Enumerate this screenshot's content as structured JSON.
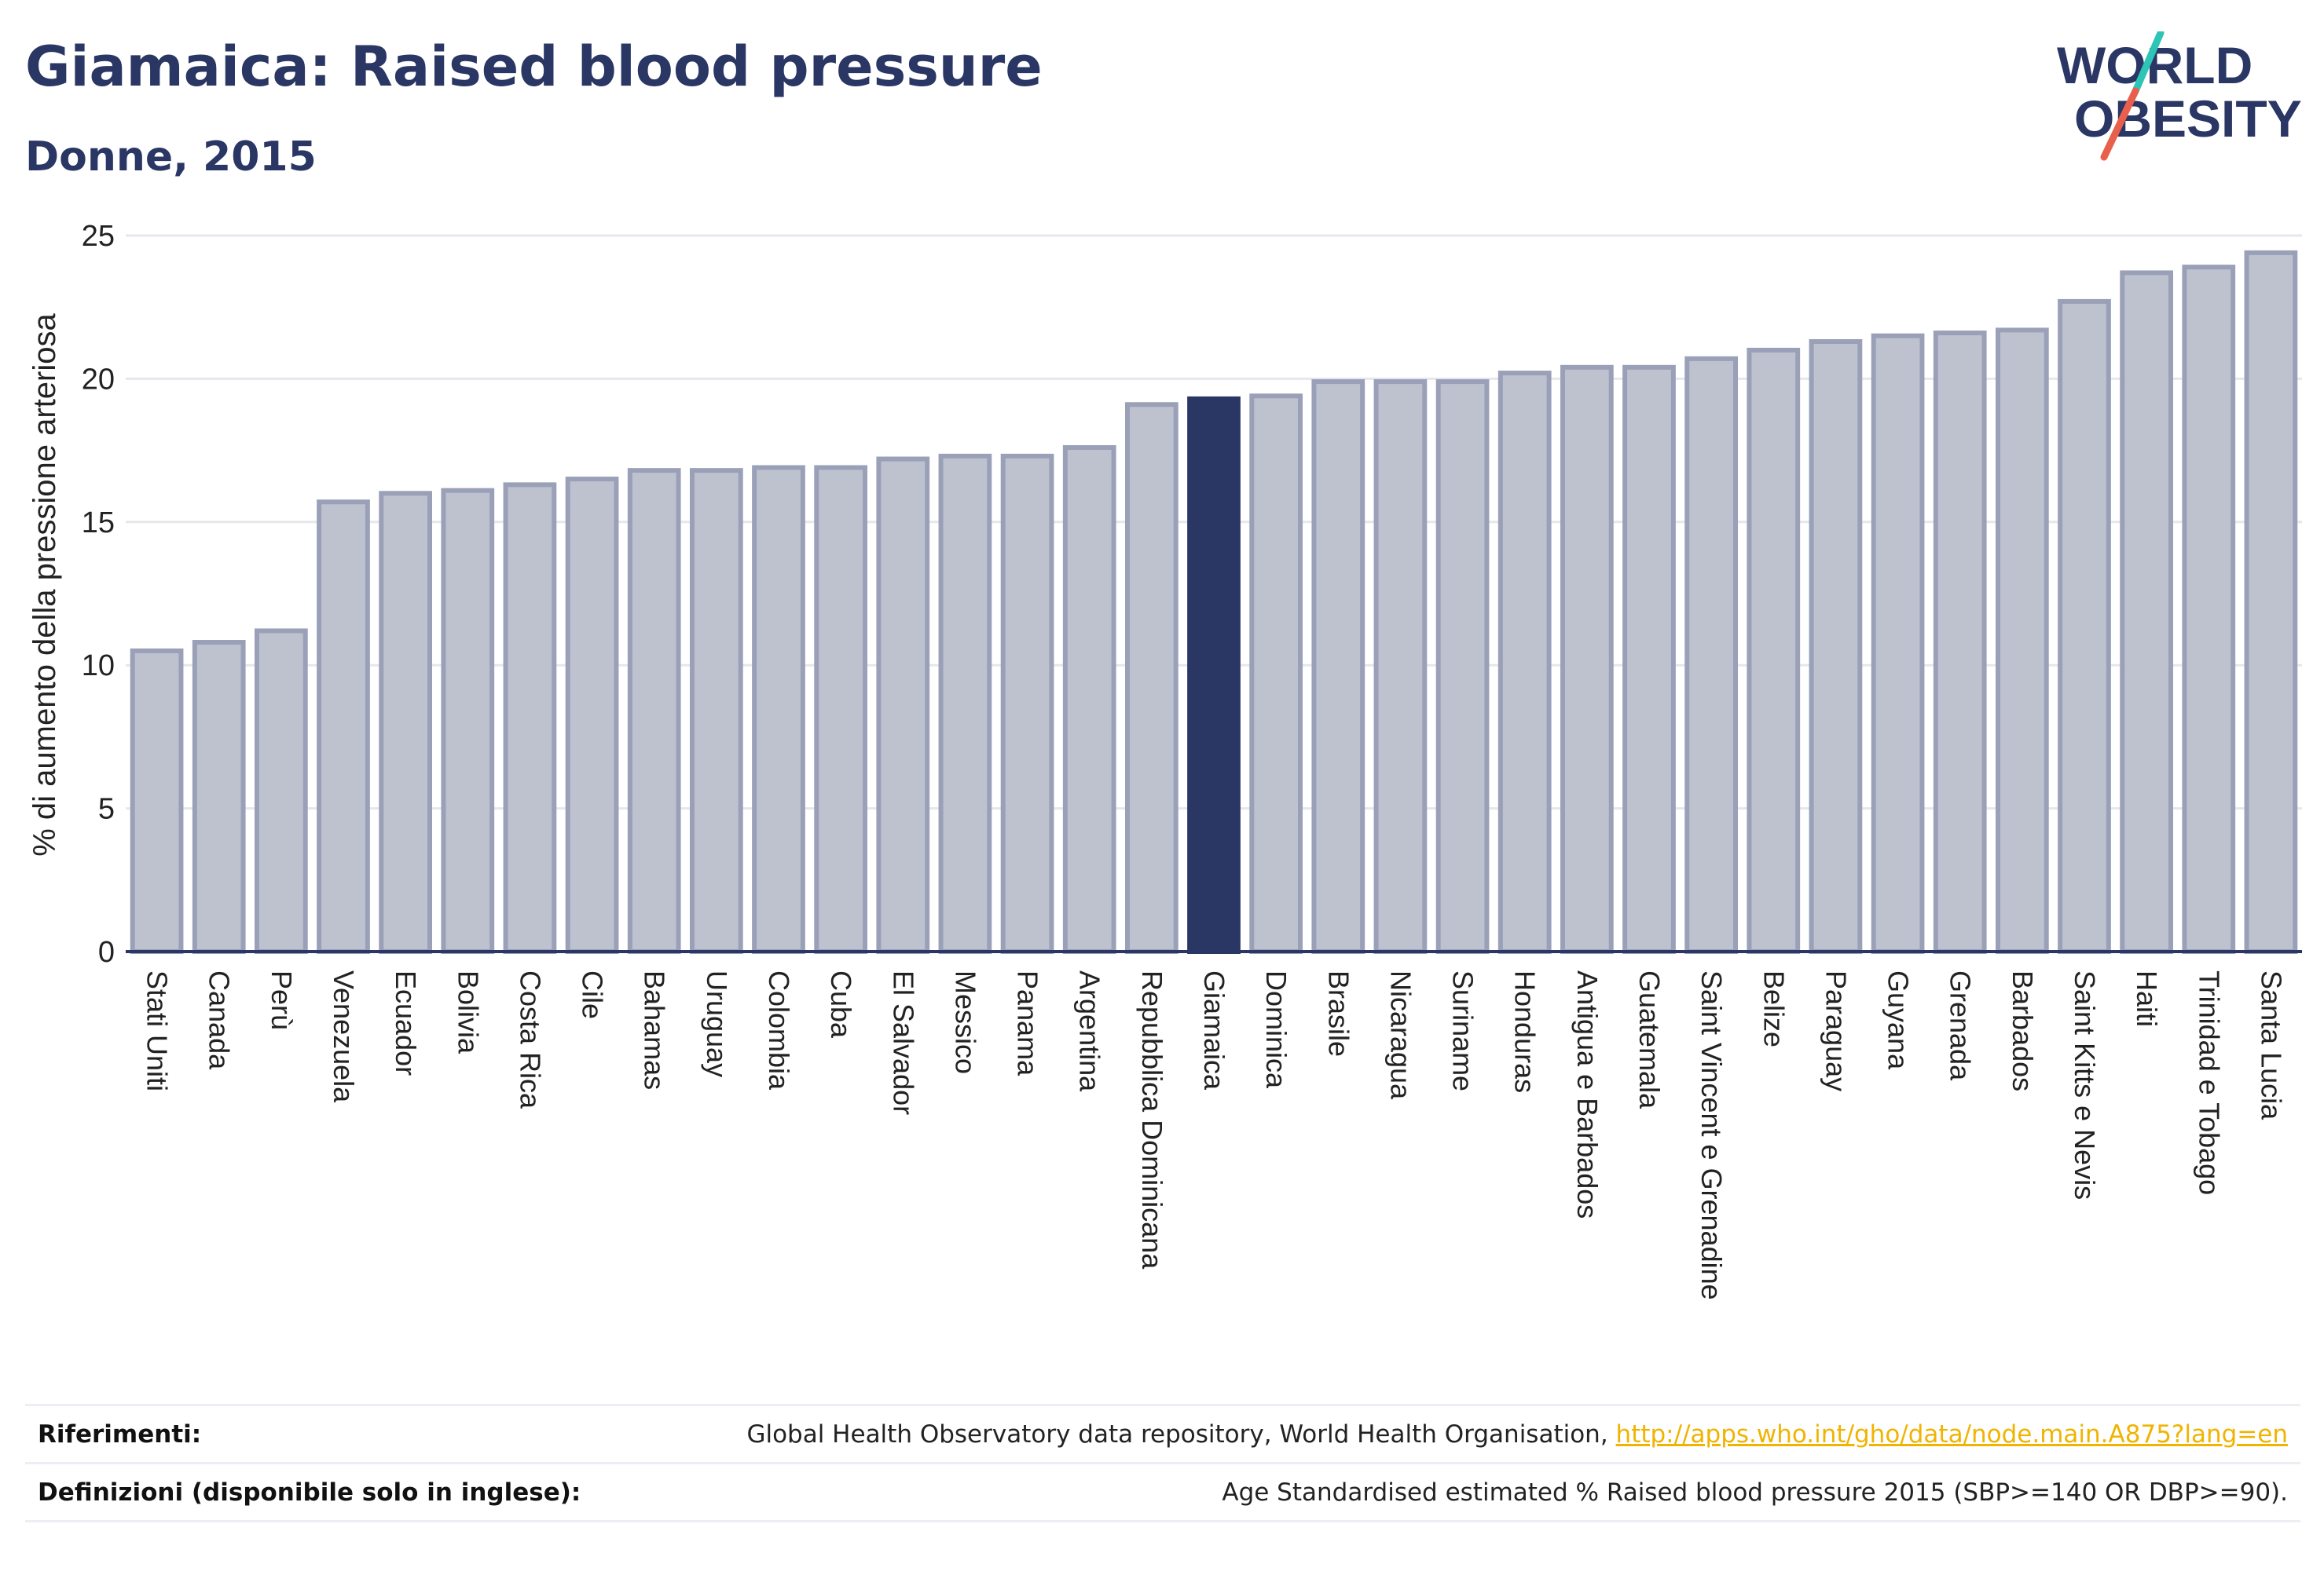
{
  "header": {
    "title": "Giamaica: Raised blood pressure",
    "subtitle": "Donne, 2015"
  },
  "logo": {
    "line1": "WORLD",
    "line2": "OBESITY",
    "colors": {
      "text": "#2a3663",
      "slash_top": "#2ec4b6",
      "slash_bottom": "#e8604c"
    }
  },
  "chart_data": {
    "type": "bar",
    "title": "",
    "ylabel": "% di aumento della pressione arteriosa",
    "xlabel": "",
    "ylim": [
      0,
      25
    ],
    "yticks": [
      0,
      5,
      10,
      15,
      20,
      25
    ],
    "grid": true,
    "highlight": "Giamaica",
    "colors": {
      "bar": "#bec2cf",
      "bar_edge": "#9aa0b8",
      "highlight": "#2a3663",
      "grid": "#e6e7ec",
      "axis": "#2a3663"
    },
    "categories": [
      "Stati Uniti",
      "Canada",
      "Perù",
      "Venezuela",
      "Ecuador",
      "Bolivia",
      "Costa Rica",
      "Cile",
      "Bahamas",
      "Uruguay",
      "Colombia",
      "Cuba",
      "El Salvador",
      "Messico",
      "Panama",
      "Argentina",
      "Repubblica Dominicana",
      "Giamaica",
      "Dominica",
      "Brasile",
      "Nicaragua",
      "Suriname",
      "Honduras",
      "Antigua e Barbados",
      "Guatemala",
      "Saint Vincent e Grenadine",
      "Belize",
      "Paraguay",
      "Guyana",
      "Grenada",
      "Barbados",
      "Saint Kitts e Nevis",
      "Haiti",
      "Trinidad e Tobago",
      "Santa Lucia"
    ],
    "values": [
      10.5,
      10.8,
      11.2,
      15.7,
      16.0,
      16.1,
      16.3,
      16.5,
      16.8,
      16.8,
      16.9,
      16.9,
      17.2,
      17.3,
      17.3,
      17.6,
      19.1,
      19.3,
      19.4,
      19.9,
      19.9,
      19.9,
      20.2,
      20.4,
      20.4,
      20.7,
      21.0,
      21.3,
      21.5,
      21.6,
      21.7,
      22.7,
      23.7,
      23.9,
      24.4
    ]
  },
  "footer": {
    "references_label": "Riferimenti:",
    "references_text": "Global Health Observatory data repository, World Health Organisation, ",
    "references_link": "http://apps.who.int/gho/data/node.main.A875?lang=en",
    "definitions_label": "Definizioni (disponibile solo in inglese):",
    "definitions_text": "Age Standardised estimated % Raised blood pressure 2015 (SBP>=140 OR DBP>=90)."
  }
}
